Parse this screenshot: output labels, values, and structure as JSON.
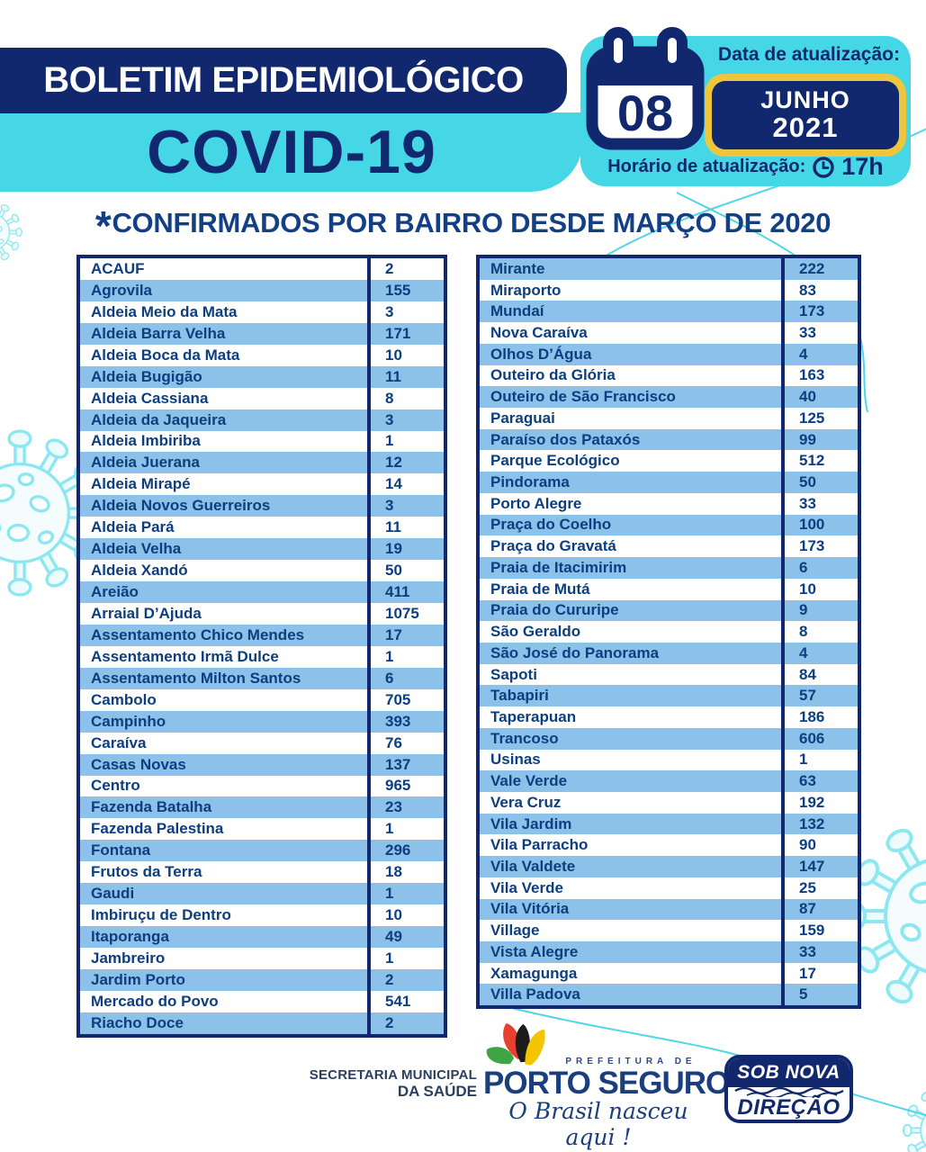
{
  "header": {
    "title": "BOLETIM EPIDEMIOLÓGICO",
    "covid": "COVID-19",
    "date_label": "Data de atualização:",
    "day": "08",
    "month": "JUNHO",
    "year": "2021",
    "time_label": "Horário de atualização:",
    "time_value": "17h"
  },
  "section": {
    "star": "*",
    "title": "CONFIRMADOS POR BAIRRO DESDE MARÇO DE 2020"
  },
  "tables": {
    "left": [
      {
        "name": "ACAUF",
        "value": "2"
      },
      {
        "name": "Agrovila",
        "value": "155"
      },
      {
        "name": "Aldeia Meio da Mata",
        "value": "3"
      },
      {
        "name": "Aldeia Barra Velha",
        "value": "171"
      },
      {
        "name": "Aldeia Boca da Mata",
        "value": "10"
      },
      {
        "name": "Aldeia Bugigão",
        "value": "11"
      },
      {
        "name": "Aldeia Cassiana",
        "value": "8"
      },
      {
        "name": "Aldeia da Jaqueira",
        "value": "3"
      },
      {
        "name": "Aldeia Imbiriba",
        "value": "1"
      },
      {
        "name": "Aldeia Juerana",
        "value": "12"
      },
      {
        "name": "Aldeia Mirapé",
        "value": "14"
      },
      {
        "name": "Aldeia Novos Guerreiros",
        "value": "3"
      },
      {
        "name": "Aldeia Pará",
        "value": "11"
      },
      {
        "name": "Aldeia Velha",
        "value": "19"
      },
      {
        "name": "Aldeia Xandó",
        "value": "50"
      },
      {
        "name": "Areião",
        "value": "411"
      },
      {
        "name": "Arraial D’Ajuda",
        "value": "1075"
      },
      {
        "name": "Assentamento Chico Mendes",
        "value": "17"
      },
      {
        "name": "Assentamento Irmã Dulce",
        "value": "1"
      },
      {
        "name": "Assentamento Milton Santos",
        "value": "6"
      },
      {
        "name": "Cambolo",
        "value": "705"
      },
      {
        "name": "Campinho",
        "value": "393"
      },
      {
        "name": "Caraíva",
        "value": "76"
      },
      {
        "name": "Casas Novas",
        "value": "137"
      },
      {
        "name": "Centro",
        "value": "965"
      },
      {
        "name": "Fazenda Batalha",
        "value": "23"
      },
      {
        "name": "Fazenda Palestina",
        "value": "1"
      },
      {
        "name": "Fontana",
        "value": "296"
      },
      {
        "name": "Frutos da Terra",
        "value": "18"
      },
      {
        "name": "Gaudi",
        "value": "1"
      },
      {
        "name": "Imbiruçu de Dentro",
        "value": "10"
      },
      {
        "name": "Itaporanga",
        "value": "49"
      },
      {
        "name": "Jambreiro",
        "value": "1"
      },
      {
        "name": "Jardim Porto",
        "value": "2"
      },
      {
        "name": "Mercado do Povo",
        "value": "541"
      },
      {
        "name": "Riacho Doce",
        "value": "2"
      }
    ],
    "right": [
      {
        "name": "Mirante",
        "value": "222"
      },
      {
        "name": "Miraporto",
        "value": "83"
      },
      {
        "name": "Mundaí",
        "value": "173"
      },
      {
        "name": "Nova Caraíva",
        "value": "33"
      },
      {
        "name": "Olhos D’Água",
        "value": "4"
      },
      {
        "name": "Outeiro da Glória",
        "value": "163"
      },
      {
        "name": "Outeiro de São Francisco",
        "value": "40"
      },
      {
        "name": "Paraguai",
        "value": "125"
      },
      {
        "name": "Paraíso dos Pataxós",
        "value": "99"
      },
      {
        "name": "Parque Ecológico",
        "value": "512"
      },
      {
        "name": "Pindorama",
        "value": "50"
      },
      {
        "name": "Porto Alegre",
        "value": "33"
      },
      {
        "name": "Praça do Coelho",
        "value": "100"
      },
      {
        "name": "Praça do Gravatá",
        "value": "173"
      },
      {
        "name": "Praia de Itacimirim",
        "value": "6"
      },
      {
        "name": "Praia de Mutá",
        "value": "10"
      },
      {
        "name": "Praia do Cururipe",
        "value": "9"
      },
      {
        "name": "São Geraldo",
        "value": "8"
      },
      {
        "name": "São José do Panorama",
        "value": "4"
      },
      {
        "name": "Sapoti",
        "value": "84"
      },
      {
        "name": "Tabapiri",
        "value": "57"
      },
      {
        "name": "Taperapuan",
        "value": "186"
      },
      {
        "name": "Trancoso",
        "value": "606"
      },
      {
        "name": "Usinas",
        "value": "1"
      },
      {
        "name": "Vale Verde",
        "value": "63"
      },
      {
        "name": "Vera Cruz",
        "value": "192"
      },
      {
        "name": "Vila Jardim",
        "value": "132"
      },
      {
        "name": "Vila Parracho",
        "value": "90"
      },
      {
        "name": "Vila Valdete",
        "value": "147"
      },
      {
        "name": "Vila Verde",
        "value": "25"
      },
      {
        "name": "Vila Vitória",
        "value": "87"
      },
      {
        "name": "Village",
        "value": "159"
      },
      {
        "name": "Vista Alegre",
        "value": "33"
      },
      {
        "name": "Xamagunga",
        "value": "17"
      },
      {
        "name": "Villa Padova",
        "value": "5"
      }
    ]
  },
  "footer": {
    "secretaria_line1": "SECRETARIA MUNICIPAL",
    "secretaria_line2": "DA SAÚDE",
    "prefeitura_label": "PREFEITURA DE",
    "city_name": "PORTO SEGURO",
    "slogan": "O Brasil nasceu aqui !",
    "badge_top": "SOB NOVA",
    "badge_bottom": "DIREÇÃO"
  },
  "colors": {
    "navy": "#12286e",
    "cyan": "#46d7e6",
    "yellow": "#edc63e",
    "row_blue": "#8cc2e9",
    "table_text": "#0d3e7f",
    "virus_outline": "#8de7f0",
    "thin_line_cyan": "#3ed2e4"
  }
}
